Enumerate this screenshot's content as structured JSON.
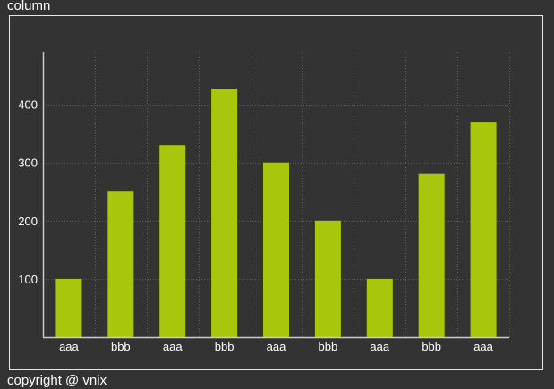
{
  "page": {
    "title": "column",
    "footer": "copyright @ vnix"
  },
  "chart_data": {
    "type": "bar",
    "title": "",
    "xlabel": "",
    "ylabel": "",
    "categories": [
      "aaa",
      "bbb",
      "aaa",
      "bbb",
      "aaa",
      "bbb",
      "aaa",
      "bbb",
      "aaa"
    ],
    "values": [
      100,
      250,
      330,
      427,
      300,
      200,
      100,
      280,
      370
    ],
    "ylim": [
      0,
      490
    ],
    "yticks": [
      100,
      200,
      300,
      400
    ],
    "grid": true,
    "legend": "none",
    "colors": {
      "bar": "#a8c60c",
      "axis": "#cccccc",
      "grid": "#5e5e5e",
      "background": "#333333"
    }
  }
}
